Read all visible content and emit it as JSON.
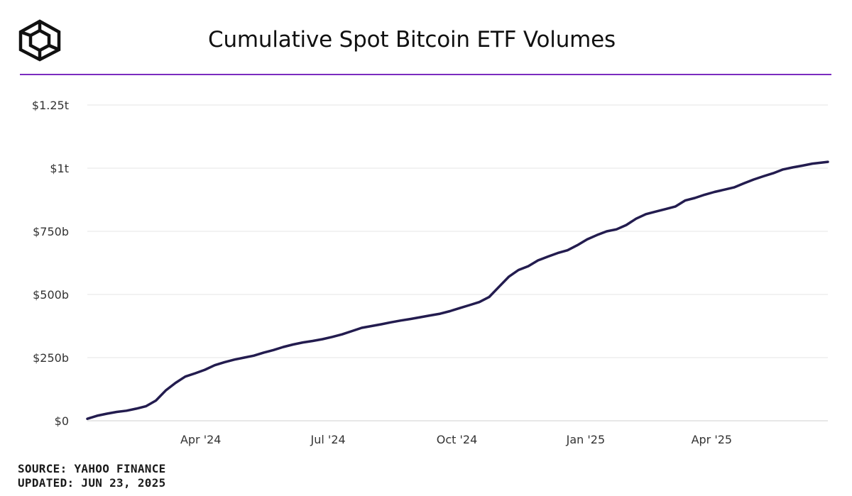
{
  "header": {
    "title": "Cumulative Spot Bitcoin ETF Volumes",
    "logo_icon": "cube-logo-icon",
    "rule_color": "#7b2cbf"
  },
  "footer": {
    "source": "SOURCE: YAHOO FINANCE",
    "updated": "UPDATED: JUN 23, 2025"
  },
  "chart_data": {
    "type": "line",
    "title": "Cumulative Spot Bitcoin ETF Volumes",
    "xlabel": "",
    "ylabel": "",
    "units": "USD billions",
    "ylim": [
      0,
      1250
    ],
    "xlim": [
      "2024-01-11",
      "2025-06-23"
    ],
    "grid": true,
    "line_color": "#231c4f",
    "y_ticks": [
      {
        "value": 0,
        "label": "$0"
      },
      {
        "value": 250,
        "label": "$250b"
      },
      {
        "value": 500,
        "label": "$500b"
      },
      {
        "value": 750,
        "label": "$750b"
      },
      {
        "value": 1000,
        "label": "$1t"
      },
      {
        "value": 1250,
        "label": "$1.25t"
      }
    ],
    "x_ticks": [
      {
        "date": "2024-04-01",
        "label": "Apr '24"
      },
      {
        "date": "2024-07-01",
        "label": "Jul '24"
      },
      {
        "date": "2024-10-01",
        "label": "Oct '24"
      },
      {
        "date": "2025-01-01",
        "label": "Jan '25"
      },
      {
        "date": "2025-04-01",
        "label": "Apr '25"
      }
    ],
    "series": [
      {
        "name": "Cumulative Volume",
        "x": [
          "2024-01-11",
          "2024-01-18",
          "2024-01-25",
          "2024-02-01",
          "2024-02-08",
          "2024-02-15",
          "2024-02-22",
          "2024-02-29",
          "2024-03-07",
          "2024-03-14",
          "2024-03-21",
          "2024-03-28",
          "2024-04-04",
          "2024-04-11",
          "2024-04-18",
          "2024-04-25",
          "2024-05-02",
          "2024-05-09",
          "2024-05-16",
          "2024-05-23",
          "2024-05-30",
          "2024-06-06",
          "2024-06-13",
          "2024-06-20",
          "2024-06-27",
          "2024-07-04",
          "2024-07-11",
          "2024-07-18",
          "2024-07-25",
          "2024-08-01",
          "2024-08-08",
          "2024-08-15",
          "2024-08-22",
          "2024-08-29",
          "2024-09-05",
          "2024-09-12",
          "2024-09-19",
          "2024-09-26",
          "2024-10-03",
          "2024-10-10",
          "2024-10-17",
          "2024-10-24",
          "2024-10-31",
          "2024-11-07",
          "2024-11-14",
          "2024-11-21",
          "2024-11-28",
          "2024-12-05",
          "2024-12-12",
          "2024-12-19",
          "2024-12-26",
          "2025-01-02",
          "2025-01-09",
          "2025-01-16",
          "2025-01-23",
          "2025-01-30",
          "2025-02-06",
          "2025-02-13",
          "2025-02-20",
          "2025-02-27",
          "2025-03-06",
          "2025-03-13",
          "2025-03-20",
          "2025-03-27",
          "2025-04-03",
          "2025-04-10",
          "2025-04-17",
          "2025-04-24",
          "2025-05-01",
          "2025-05-08",
          "2025-05-15",
          "2025-05-22",
          "2025-05-29",
          "2025-06-05",
          "2025-06-12",
          "2025-06-23"
        ],
        "values": [
          8,
          20,
          28,
          35,
          40,
          48,
          58,
          80,
          120,
          150,
          175,
          188,
          202,
          220,
          232,
          242,
          250,
          258,
          270,
          280,
          292,
          302,
          310,
          316,
          323,
          332,
          342,
          355,
          368,
          375,
          382,
          390,
          397,
          403,
          410,
          417,
          424,
          434,
          446,
          458,
          470,
          490,
          530,
          570,
          597,
          612,
          635,
          650,
          664,
          675,
          695,
          718,
          735,
          750,
          758,
          775,
          800,
          818,
          828,
          838,
          848,
          872,
          882,
          895,
          906,
          915,
          924,
          940,
          955,
          968,
          980,
          995,
          1003,
          1010,
          1018,
          1025
        ]
      }
    ]
  }
}
